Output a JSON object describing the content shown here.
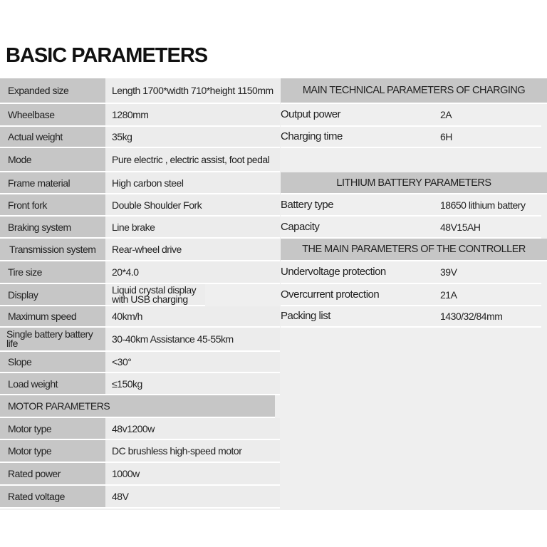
{
  "title": "BASIC PARAMETERS",
  "basic_rows": [
    {
      "label": "Expanded size",
      "value": "Length 1700*width 710*height 1150mm"
    },
    {
      "label": "Wheelbase",
      "value": "1280mm"
    },
    {
      "label": "Actual weight",
      "value": "35kg"
    },
    {
      "label": "Mode",
      "value": "Pure electric , electric assist, foot pedal"
    },
    {
      "label": "Frame material",
      "value": "High carbon steel"
    },
    {
      "label": "Front fork",
      "value": "Double Shoulder Fork"
    },
    {
      "label": "Braking system",
      "value": "Line brake"
    },
    {
      "label": "Transmission system",
      "value": "Rear-wheel drive"
    },
    {
      "label": "Tire size",
      "value": "20*4.0"
    },
    {
      "label": "Display",
      "value": "Liquid crystal display with USB charging"
    },
    {
      "label": "Maximum speed",
      "value": "40km/h"
    },
    {
      "label": "Single battery battery life",
      "value": "30-40km Assistance 45-55km"
    },
    {
      "label": "Slope",
      "value": "<30°"
    },
    {
      "label": "Load weight",
      "value": "≤150kg"
    }
  ],
  "motor": {
    "header": "MOTOR PARAMETERS",
    "rows": [
      {
        "label": "Motor type",
        "value": "48v1200w"
      },
      {
        "label": "Motor type",
        "value": "DC brushless high-speed motor"
      },
      {
        "label": "Rated power",
        "value": "1000w"
      },
      {
        "label": "Rated voltage",
        "value": "48V"
      }
    ]
  },
  "charging": {
    "header": "MAIN TECHNICAL PARAMETERS OF CHARGING",
    "rows": [
      {
        "label": "Output power",
        "value": "2A"
      },
      {
        "label": "Charging time",
        "value": "6H"
      }
    ]
  },
  "battery": {
    "header": "LITHIUM BATTERY PARAMETERS",
    "rows": [
      {
        "label": "Battery type",
        "value": "18650 lithium battery"
      },
      {
        "label": "Capacity",
        "value": "48V15AH"
      }
    ]
  },
  "controller": {
    "header": "THE MAIN PARAMETERS OF THE CONTROLLER",
    "rows": [
      {
        "label": "Undervoltage protection",
        "value": "39V"
      },
      {
        "label": "Overcurrent protection",
        "value": "21A"
      },
      {
        "label": "Packing list",
        "value": "1430/32/84mm"
      }
    ]
  }
}
